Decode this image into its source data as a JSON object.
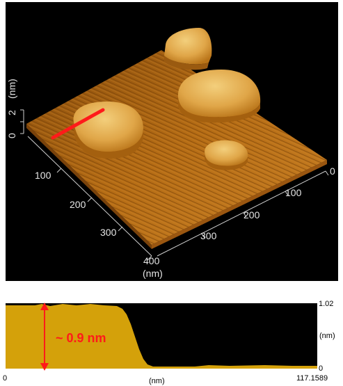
{
  "surface_3d": {
    "z_axis": {
      "ticks": [
        "0",
        "2"
      ],
      "unit": "(nm)"
    },
    "x_axis": {
      "ticks": [
        "100",
        "200",
        "300",
        "400"
      ],
      "unit": "(nm)"
    },
    "y_axis": {
      "ticks": [
        "0",
        "100",
        "200",
        "300"
      ]
    }
  },
  "profile": {
    "annotation": "~ 0.9 nm",
    "x_start": "0",
    "x_end": "117.1589",
    "x_unit": "(nm)",
    "y_top": "1.02",
    "y_bottom": "0",
    "y_unit": "(nm)"
  },
  "colors": {
    "background_3d": "#000000",
    "terrace": "#b06a12",
    "island": "#e6b35a",
    "profile_fill": "#d4a10a",
    "line_marker": "#ff1a1a"
  }
}
